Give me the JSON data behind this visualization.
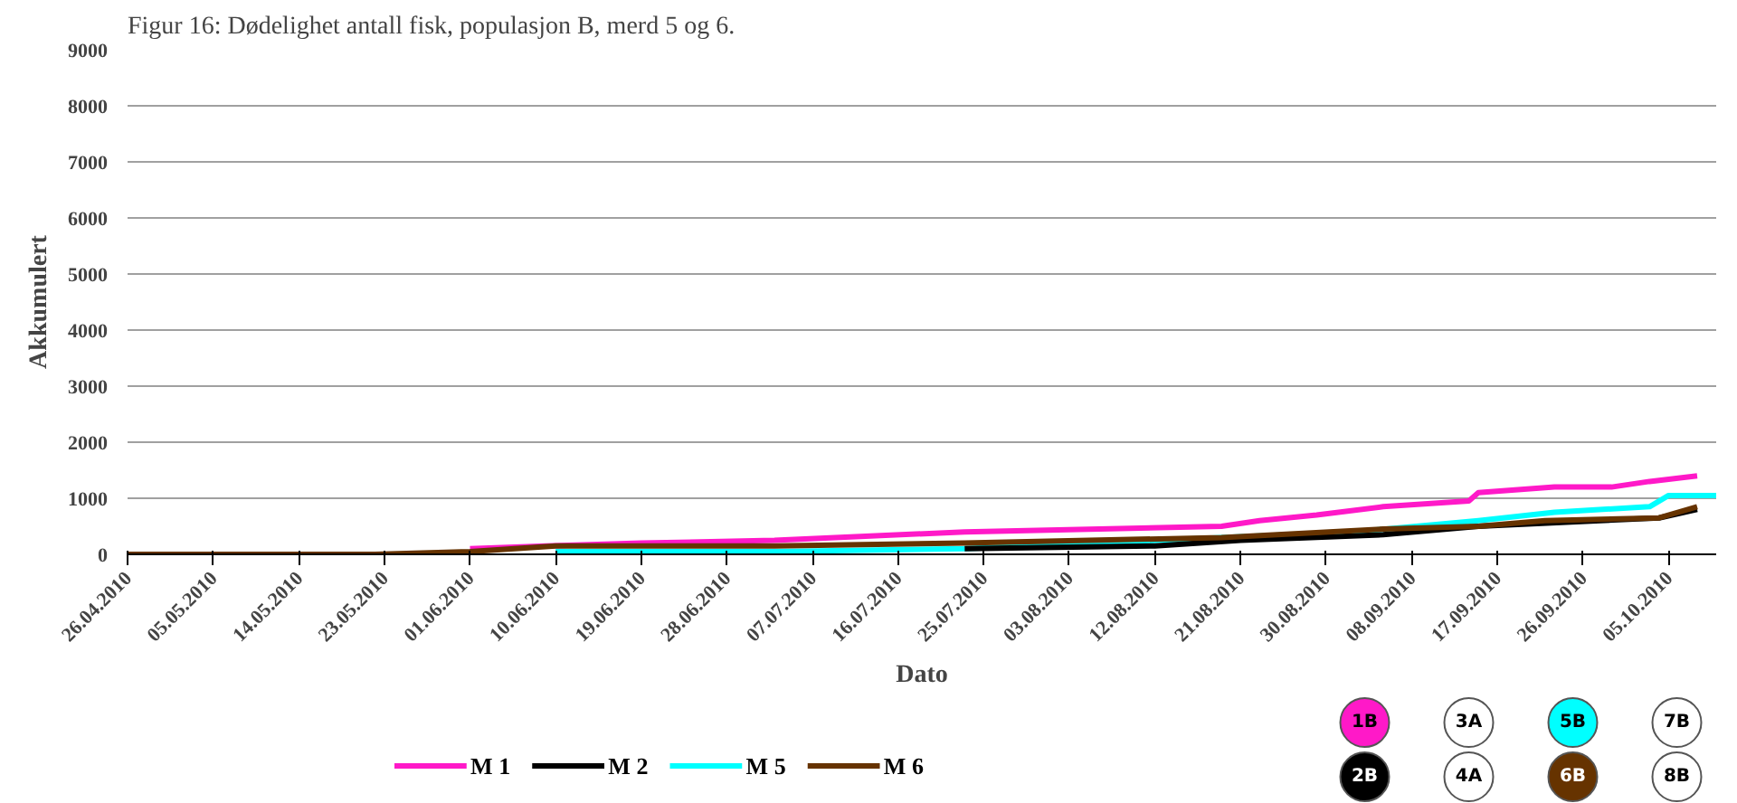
{
  "chart_data": {
    "type": "line",
    "title": "Figur 16: Dødelighet antall fisk, populasjon B, merd 5 og 6.",
    "xlabel": "Dato",
    "ylabel": "Akkumulert",
    "xlim": [
      "2010-04-26",
      "2010-10-10"
    ],
    "xticks": [
      {
        "value": "2010-04-26",
        "label": "26.04.2010"
      },
      {
        "value": "2010-05-05",
        "label": "05.05.2010"
      },
      {
        "value": "2010-05-14",
        "label": "14.05.2010"
      },
      {
        "value": "2010-05-23",
        "label": "23.05.2010"
      },
      {
        "value": "2010-06-01",
        "label": "01.06.2010"
      },
      {
        "value": "2010-06-10",
        "label": "10.06.2010"
      },
      {
        "value": "2010-06-19",
        "label": "19.06.2010"
      },
      {
        "value": "2010-06-28",
        "label": "28.06.2010"
      },
      {
        "value": "2010-07-07",
        "label": "07.07.2010"
      },
      {
        "value": "2010-07-16",
        "label": "16.07.2010"
      },
      {
        "value": "2010-07-25",
        "label": "25.07.2010"
      },
      {
        "value": "2010-08-03",
        "label": "03.08.2010"
      },
      {
        "value": "2010-08-12",
        "label": "12.08.2010"
      },
      {
        "value": "2010-08-21",
        "label": "21.08.2010"
      },
      {
        "value": "2010-08-30",
        "label": "30.08.2010"
      },
      {
        "value": "2010-09-08",
        "label": "08.09.2010"
      },
      {
        "value": "2010-09-17",
        "label": "17.09.2010"
      },
      {
        "value": "2010-09-26",
        "label": "26.09.2010"
      },
      {
        "value": "2010-10-05",
        "label": "05.10.2010"
      }
    ],
    "ylim": [
      0,
      9000
    ],
    "yticks": [
      0,
      1000,
      2000,
      3000,
      4000,
      5000,
      6000,
      7000,
      8000,
      9000
    ],
    "grid": "y",
    "legend": "bottom",
    "marker": "none",
    "line_style": "solid",
    "series": [
      {
        "name": "M 1",
        "color": "#ff19c8",
        "x": [
          "2010-06-01",
          "2010-06-09",
          "2010-06-19",
          "2010-07-03",
          "2010-07-23",
          "2010-08-19",
          "2010-08-23",
          "2010-08-29",
          "2010-09-05",
          "2010-09-14",
          "2010-09-15",
          "2010-09-23",
          "2010-09-29",
          "2010-10-03",
          "2010-10-08"
        ],
        "values": [
          100,
          150,
          200,
          250,
          400,
          500,
          600,
          700,
          850,
          950,
          1100,
          1200,
          1200,
          1300,
          1400
        ]
      },
      {
        "name": "M 2",
        "color": "#000000",
        "x": [
          "2010-07-23",
          "2010-08-12",
          "2010-08-21",
          "2010-09-05",
          "2010-09-15",
          "2010-10-04",
          "2010-10-08"
        ],
        "values": [
          100,
          150,
          250,
          350,
          500,
          650,
          800
        ]
      },
      {
        "name": "M 5",
        "color": "#00ffff",
        "x": [
          "2010-06-10",
          "2010-07-03",
          "2010-07-23",
          "2010-08-19",
          "2010-09-02",
          "2010-09-15",
          "2010-09-23",
          "2010-10-03",
          "2010-10-05",
          "2010-10-10"
        ],
        "values": [
          50,
          50,
          100,
          300,
          400,
          600,
          750,
          850,
          1050,
          1050
        ]
      },
      {
        "name": "M 6",
        "color": "#663300",
        "x": [
          "2010-04-26",
          "2010-05-22",
          "2010-06-01",
          "2010-06-10",
          "2010-06-19",
          "2010-07-03",
          "2010-07-23",
          "2010-08-19",
          "2010-09-05",
          "2010-09-15",
          "2010-09-22",
          "2010-10-04",
          "2010-10-08"
        ],
        "values": [
          0,
          0,
          50,
          150,
          150,
          150,
          200,
          300,
          450,
          500,
          600,
          650,
          850
        ]
      }
    ],
    "annotations": [
      "1B",
      "3A",
      "5B",
      "7B",
      "2B",
      "4A",
      "6B",
      "8B"
    ]
  }
}
